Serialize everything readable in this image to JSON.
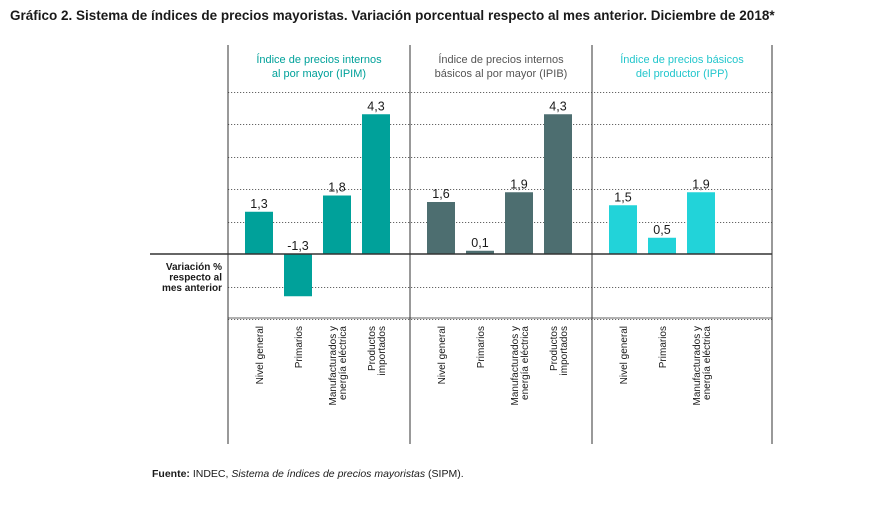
{
  "title": "Gráfico 2. Sistema de índices de precios mayoristas. Variación porcentual respecto al mes anterior. Diciembre de 2018*",
  "source": {
    "label": "Fuente:",
    "text": " INDEC, ",
    "italic": "Sistema de índices de precios mayoristas",
    "suffix": " (SIPM)."
  },
  "chart_data": {
    "type": "bar",
    "title": "Gráfico 2. Sistema de índices de precios mayoristas. Variación porcentual respecto al mes anterior. Diciembre de 2018*",
    "ylabel": [
      "Variación %",
      "respecto al",
      "mes anterior"
    ],
    "ylim": [
      -2.0,
      5.0
    ],
    "grid": "dotted horizontal",
    "panels": [
      {
        "name": [
          "Índice de precios internos",
          "al por mayor (IPIM)"
        ],
        "color": "#00a19a",
        "title_color": "#00a19a",
        "categories": [
          [
            "Nivel general"
          ],
          [
            "Primarios"
          ],
          [
            "Manufacturados y",
            "energía eléctrica"
          ],
          [
            "Productos",
            "importados"
          ]
        ],
        "values": [
          1.3,
          -1.3,
          1.8,
          4.3
        ],
        "labels": [
          "1,3",
          "-1,3",
          "1,8",
          "4,3"
        ]
      },
      {
        "name": [
          "Índice de precios internos",
          "básicos al por mayor (IPIB)"
        ],
        "color": "#4d6e70",
        "title_color": "#555555",
        "categories": [
          [
            "Nivel general"
          ],
          [
            "Primarios"
          ],
          [
            "Manufacturados y",
            "energía eléctrica"
          ],
          [
            "Productos",
            "importados"
          ]
        ],
        "values": [
          1.6,
          0.1,
          1.9,
          4.3
        ],
        "labels": [
          "1,6",
          "0,1",
          "1,9",
          "4,3"
        ]
      },
      {
        "name": [
          "Índice de precios básicos",
          "del productor (IPP)"
        ],
        "color": "#22d3d9",
        "title_color": "#22c6cc",
        "categories": [
          [
            "Nivel general"
          ],
          [
            "Primarios"
          ],
          [
            "Manufacturados y",
            "energía eléctrica"
          ]
        ],
        "values": [
          1.5,
          0.5,
          1.9
        ],
        "labels": [
          "1,5",
          "0,5",
          "1,9"
        ]
      }
    ]
  }
}
